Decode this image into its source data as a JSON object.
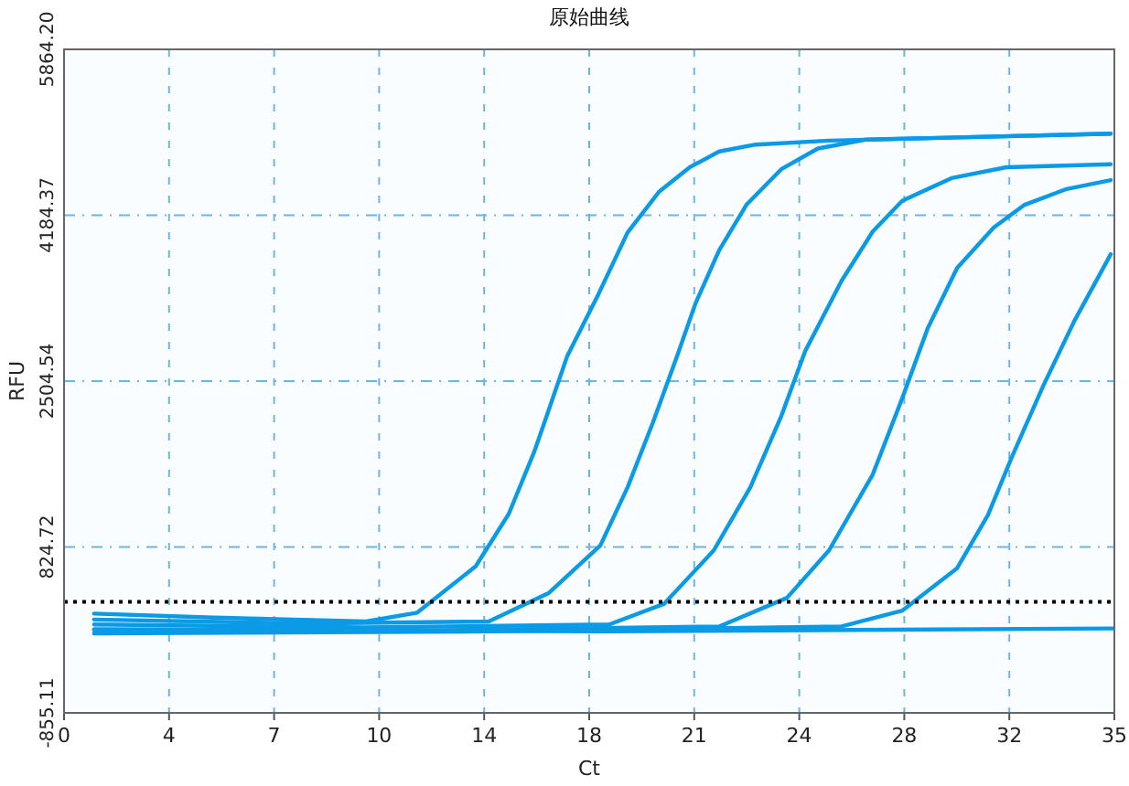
{
  "chart_data": {
    "type": "line",
    "title": "原始曲线",
    "xlabel": "Ct",
    "ylabel": "RFU",
    "xlim": [
      0,
      35
    ],
    "xticks": [
      0,
      {
        "value": 3.5,
        "label": "4"
      },
      7,
      {
        "value": 10.5,
        "label": "10"
      },
      14,
      {
        "value": 17.5,
        "label": "18"
      },
      21,
      {
        "value": 24.5,
        "label": "24"
      },
      28,
      {
        "value": 31.5,
        "label": "32"
      },
      35
    ],
    "ylim": [
      -855.11,
      5864.2
    ],
    "yticks": [
      -855.11,
      824.72,
      2504.54,
      4184.37,
      {
        "value": 5864.2,
        "label": "5864.20"
      }
    ],
    "grid": true,
    "line_style": "solid",
    "ref_lines": [
      {
        "axis": "y",
        "value": 270,
        "label": null,
        "color": "#000000",
        "line_style": "dotted"
      }
    ],
    "series": [
      {
        "color": "#0a9ae6",
        "x": [
          1,
          5,
          10.06,
          11.77,
          13.72,
          14.82,
          15.67,
          16.16,
          16.77,
          17.8,
          18.78,
          19.82,
          20.85,
          21.83,
          23.05,
          25.49,
          34.88
        ],
        "values": [
          150,
          110,
          70,
          160,
          630,
          1160,
          1790,
          2220,
          2760,
          3380,
          4010,
          4420,
          4670,
          4830,
          4900,
          4940,
          5010
        ]
      },
      {
        "color": "#0a9ae6",
        "x": [
          1,
          8,
          14.15,
          16.16,
          17.87,
          18.78,
          19.63,
          20.43,
          21.04,
          21.83,
          22.74,
          23.9,
          25.12,
          26.71,
          34.88
        ],
        "values": [
          90,
          50,
          70,
          360,
          840,
          1430,
          2090,
          2760,
          3290,
          3830,
          4290,
          4650,
          4860,
          4950,
          5010
        ]
      },
      {
        "color": "#0a9ae6",
        "x": [
          1,
          10,
          18.17,
          20.0,
          21.65,
          22.87,
          23.9,
          24.7,
          25.91,
          26.95,
          27.93,
          29.57,
          31.4,
          34.88
        ],
        "values": [
          40,
          10,
          40,
          250,
          790,
          1430,
          2150,
          2810,
          3520,
          4020,
          4330,
          4560,
          4670,
          4700
        ]
      },
      {
        "color": "#0a9ae6",
        "x": [
          1,
          12,
          21.83,
          24.09,
          25.49,
          26.95,
          27.93,
          28.78,
          29.76,
          30.98,
          32.01,
          33.41,
          34.88
        ],
        "values": [
          -10,
          -20,
          20,
          310,
          790,
          1560,
          2330,
          3040,
          3650,
          4060,
          4290,
          4450,
          4540
        ]
      },
      {
        "color": "#0a9ae6",
        "x": [
          1,
          14,
          25.91,
          27.93,
          29.76,
          30.79,
          31.59,
          32.62,
          33.66,
          34.88
        ],
        "values": [
          -50,
          -30,
          20,
          180,
          610,
          1150,
          1740,
          2450,
          3110,
          3790
        ]
      },
      {
        "color": "#0a9ae6",
        "x": [
          1,
          18,
          35
        ],
        "values": [
          -10,
          -30,
          0
        ]
      }
    ]
  }
}
